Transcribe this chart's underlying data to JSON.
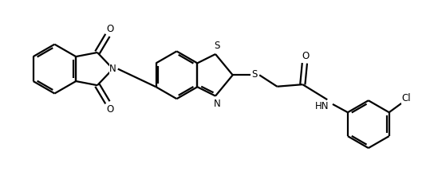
{
  "bg_color": "#ffffff",
  "line_color": "#000000",
  "line_width": 1.6,
  "figsize": [
    5.44,
    2.35
  ],
  "dpi": 100,
  "xlim": [
    0,
    10.5
  ],
  "ylim": [
    0.2,
    4.5
  ]
}
